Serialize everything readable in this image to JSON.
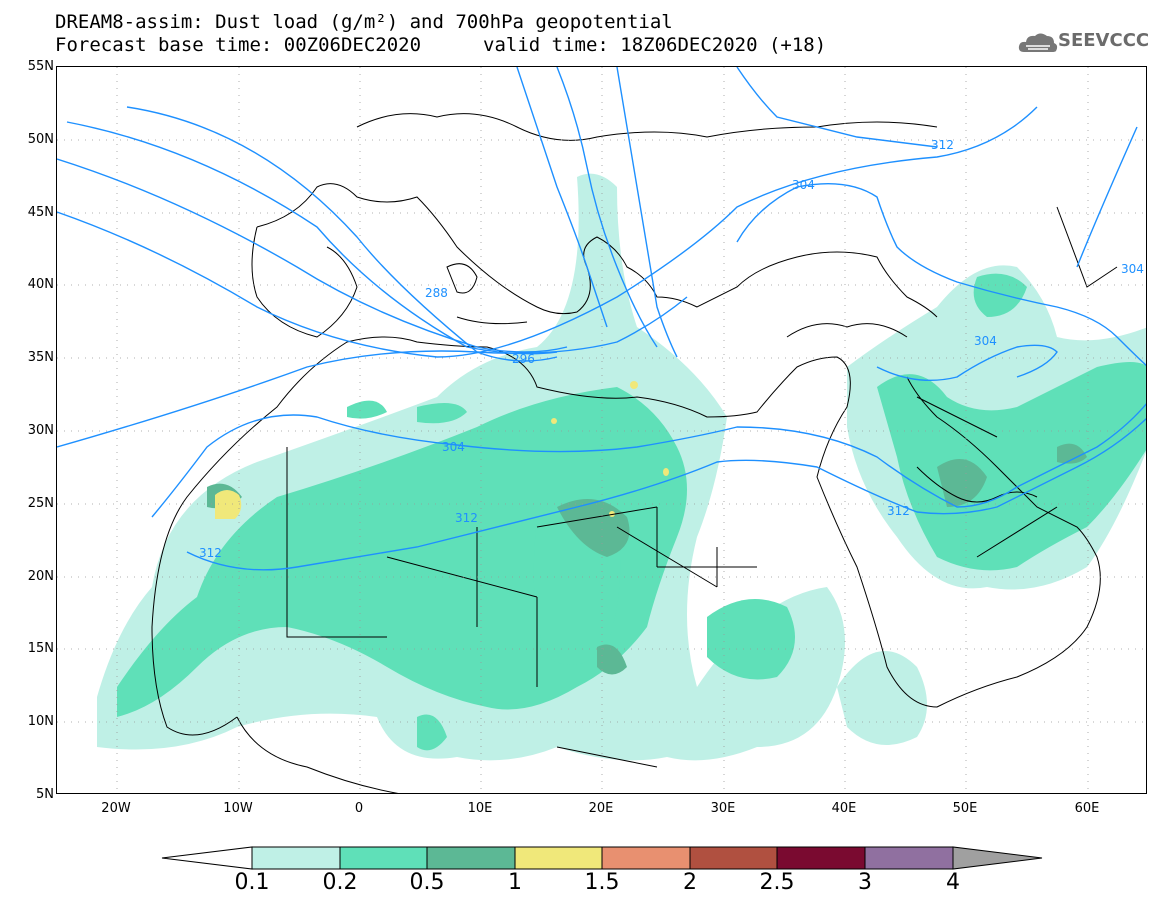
{
  "title": {
    "line1": "DREAM8-assim: Dust load (g/m²) and 700hPa geopotential",
    "line2": "Forecast base time: 00Z06DEC2020",
    "valid": "valid time: 18Z06DEC2020 (+18)"
  },
  "logo_text": "SEEVCCC",
  "lat_labels": [
    "55N",
    "50N",
    "45N",
    "40N",
    "35N",
    "30N",
    "25N",
    "20N",
    "15N",
    "10N",
    "5N"
  ],
  "lon_labels": [
    "20W",
    "10W",
    "0",
    "10E",
    "20E",
    "30E",
    "40E",
    "50E",
    "60E"
  ],
  "contour_labels": [
    "288",
    "296",
    "304",
    "312",
    "304",
    "312",
    "304",
    "312",
    "304",
    "312"
  ],
  "colorbar": {
    "ticks": [
      "0.1",
      "0.2",
      "0.5",
      "1",
      "1.5",
      "2",
      "2.5",
      "3",
      "4"
    ],
    "colors": [
      "#bff0e6",
      "#5fe0b8",
      "#5cb895",
      "#f0e87a",
      "#e89070",
      "#b05040",
      "#7a0a30",
      "#9070a0",
      "#a0a0a0"
    ]
  },
  "colors": {
    "contour": "#1e90ff",
    "coast": "#000000",
    "frame": "#000000"
  }
}
